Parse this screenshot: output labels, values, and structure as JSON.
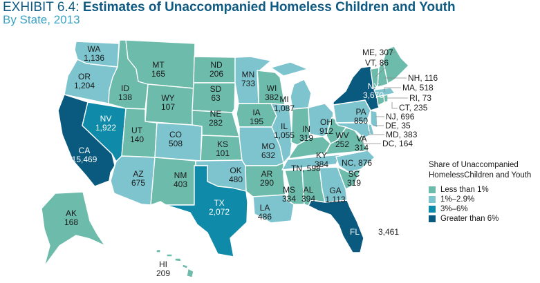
{
  "header": {
    "exhibit": "EXHIBIT 6.4:",
    "title": "Estimates of Unaccompanied Homeless Children and Youth",
    "subtitle": "By State, 2013"
  },
  "legend": {
    "title_line1": "Share of Unaccompanied",
    "title_line2": "HomelessChildren and Youth",
    "categories": [
      {
        "label": "Less than 1%",
        "color": "#6cbbab"
      },
      {
        "label": "1%–2.9%",
        "color": "#7dc4ce"
      },
      {
        "label": "3%–6%",
        "color": "#0f8aa8"
      },
      {
        "label": "Greater than 6%",
        "color": "#0a5a80"
      }
    ]
  },
  "states": [
    {
      "abbr": "WA",
      "value": "1,136",
      "category": 1
    },
    {
      "abbr": "OR",
      "value": "1,204",
      "category": 1
    },
    {
      "abbr": "CA",
      "value": "15,469",
      "category": 3
    },
    {
      "abbr": "NV",
      "value": "1,922",
      "category": 2
    },
    {
      "abbr": "ID",
      "value": "138",
      "category": 0
    },
    {
      "abbr": "MT",
      "value": "165",
      "category": 0
    },
    {
      "abbr": "WY",
      "value": "107",
      "category": 0
    },
    {
      "abbr": "UT",
      "value": "140",
      "category": 0
    },
    {
      "abbr": "CO",
      "value": "508",
      "category": 1
    },
    {
      "abbr": "AZ",
      "value": "675",
      "category": 1
    },
    {
      "abbr": "NM",
      "value": "403",
      "category": 0
    },
    {
      "abbr": "ND",
      "value": "206",
      "category": 0
    },
    {
      "abbr": "SD",
      "value": "63",
      "category": 0
    },
    {
      "abbr": "NE",
      "value": "282",
      "category": 0
    },
    {
      "abbr": "KS",
      "value": "101",
      "category": 0
    },
    {
      "abbr": "OK",
      "value": "480",
      "category": 1
    },
    {
      "abbr": "TX",
      "value": "2,072",
      "category": 2
    },
    {
      "abbr": "MN",
      "value": "733",
      "category": 1
    },
    {
      "abbr": "IA",
      "value": "195",
      "category": 0
    },
    {
      "abbr": "MO",
      "value": "632",
      "category": 1
    },
    {
      "abbr": "AR",
      "value": "290",
      "category": 0
    },
    {
      "abbr": "LA",
      "value": "486",
      "category": 1
    },
    {
      "abbr": "WI",
      "value": "382",
      "category": 0
    },
    {
      "abbr": "IL",
      "value": "1,055",
      "category": 1
    },
    {
      "abbr": "MI",
      "value": "1,087",
      "category": 1
    },
    {
      "abbr": "IN",
      "value": "319",
      "category": 0
    },
    {
      "abbr": "OH",
      "value": "912",
      "category": 1
    },
    {
      "abbr": "KY",
      "value": "384",
      "category": 0
    },
    {
      "abbr": "TN",
      "value": "598",
      "category": 1
    },
    {
      "abbr": "MS",
      "value": "334",
      "category": 0
    },
    {
      "abbr": "AL",
      "value": "394",
      "category": 0
    },
    {
      "abbr": "GA",
      "value": "1,113",
      "category": 1
    },
    {
      "abbr": "FL",
      "value": "3,461",
      "category": 3
    },
    {
      "abbr": "SC",
      "value": "319",
      "category": 0
    },
    {
      "abbr": "NC",
      "value": "876",
      "category": 1
    },
    {
      "abbr": "VA",
      "value": "314",
      "category": 0
    },
    {
      "abbr": "WV",
      "value": "252",
      "category": 0
    },
    {
      "abbr": "PA",
      "value": "850",
      "category": 1
    },
    {
      "abbr": "NY",
      "value": "3,670",
      "category": 3
    },
    {
      "abbr": "NJ",
      "value": "696",
      "category": 1
    },
    {
      "abbr": "DE",
      "value": "35",
      "category": 1
    },
    {
      "abbr": "MD",
      "value": "383",
      "category": 1
    },
    {
      "abbr": "DC",
      "value": "164",
      "category": 0
    },
    {
      "abbr": "CT",
      "value": "235",
      "category": 0
    },
    {
      "abbr": "RI",
      "value": "73",
      "category": 0
    },
    {
      "abbr": "MA",
      "value": "518",
      "category": 1
    },
    {
      "abbr": "VT",
      "value": "86",
      "category": 0
    },
    {
      "abbr": "NH",
      "value": "116",
      "category": 0
    },
    {
      "abbr": "ME",
      "value": "307",
      "category": 0
    },
    {
      "abbr": "AK",
      "value": "168",
      "category": 0
    },
    {
      "abbr": "HI",
      "value": "209",
      "category": 0
    }
  ]
}
